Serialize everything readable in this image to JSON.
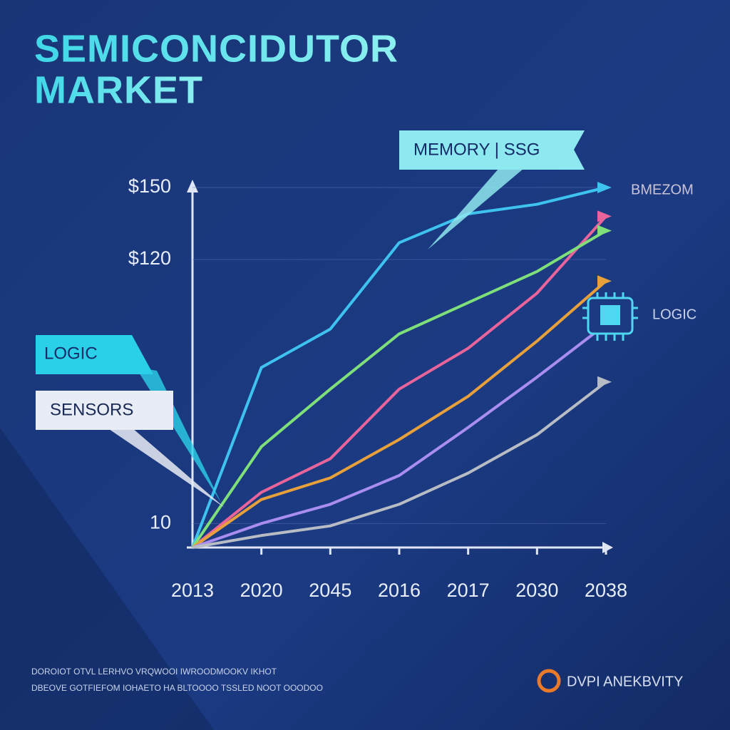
{
  "chart_data": {
    "type": "line",
    "title": [
      "SEMICONCIDUTOR",
      "MARKET"
    ],
    "categories": [
      "2013",
      "2020",
      "2045",
      "2016",
      "2017",
      "2030",
      "2038"
    ],
    "series": [
      {
        "color": "#3ec3f0",
        "values": [
          0,
          75,
          91,
          127,
          139,
          143,
          150
        ]
      },
      {
        "color": "#e8649a",
        "values": [
          0,
          23,
          37,
          66,
          83,
          106,
          138
        ]
      },
      {
        "color": "#7fe07a",
        "values": [
          0,
          42,
          66,
          89,
          102,
          115,
          132
        ]
      },
      {
        "color": "#e8a03a",
        "values": [
          0,
          20,
          29,
          45,
          63,
          86,
          111
        ]
      },
      {
        "color": "#a98df0",
        "values": [
          0,
          10,
          18,
          30,
          50,
          71,
          93
        ]
      },
      {
        "color": "#b8bcc4",
        "values": [
          0,
          5,
          9,
          18,
          31,
          47,
          69
        ]
      }
    ],
    "ylim": [
      0,
      150
    ],
    "yticks": [
      {
        "value": 10,
        "label": "10"
      },
      {
        "value": 120,
        "label": "$120"
      },
      {
        "value": 150,
        "label": "$150"
      }
    ],
    "grid": true,
    "annotations": [
      "MEMORY | SSG",
      "LOGIC",
      "SENSORS",
      "BMEZOM",
      "LOGIC"
    ],
    "footnote": [
      "DOROIOT OTVL LERHVO VRQWOOI IWROODMOOKV IKHOT",
      "DBEOVE GOTFIEFOM IOHAETO HA BLTOOOO TSSLED NOOT OOODOO"
    ],
    "brand": "DVPI ANEKBVITY"
  }
}
